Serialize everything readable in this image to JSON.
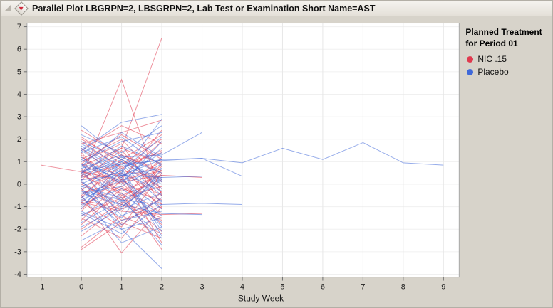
{
  "header": {
    "title": "Parallel Plot LBGRPN=2, LBSGRPN=2, Lab Test or Examination Short Name=AST"
  },
  "legend": {
    "title_line1": "Planned Treatment",
    "title_line2": "for Period 01"
  },
  "chart_data": {
    "type": "line",
    "subtype": "parallel-coordinates",
    "title": "Parallel Plot LBGRPN=2, LBSGRPN=2, Lab Test or Examination Short Name=AST",
    "xlabel": "Study Week",
    "ylabel": "",
    "xlim": [
      -1.35,
      9.39
    ],
    "ylim": [
      -4.13,
      7.16
    ],
    "xticks": [
      -1,
      0,
      1,
      2,
      3,
      4,
      5,
      6,
      7,
      8,
      9
    ],
    "yticks": [
      -4,
      -3,
      -2,
      -1,
      0,
      1,
      2,
      3,
      4,
      5,
      6,
      7
    ],
    "grid": true,
    "legend_position": "right",
    "default_x": [
      0,
      1,
      2
    ],
    "series": [
      {
        "name": "NIC .15",
        "color": "#e0394e",
        "lines": [
          {
            "x": [
              -1,
              0,
              1,
              2
            ],
            "y": [
              0.85,
              0.55,
              0.2,
              0.6
            ]
          },
          {
            "y": [
              0.5,
              1.6,
              6.5
            ]
          },
          {
            "y": [
              0.3,
              4.65,
              -0.5
            ]
          },
          {
            "y": [
              1.8,
              2.3,
              2.85
            ]
          },
          {
            "x": [
              0,
              1,
              2,
              3
            ],
            "y": [
              0.6,
              0.1,
              0.4,
              0.3
            ]
          },
          {
            "x": [
              0,
              1,
              2,
              3
            ],
            "y": [
              -0.8,
              -1.2,
              -1.35,
              -1.3
            ]
          },
          {
            "y": [
              -0.5,
              -3.05,
              -1.0
            ]
          },
          {
            "y": [
              -2.9,
              -1.7,
              -2.4
            ]
          },
          {
            "y": [
              0.6,
              -0.3,
              0.4
            ]
          },
          {
            "y": [
              -0.5,
              0.8,
              -1.1
            ]
          },
          {
            "y": [
              1.2,
              0.3,
              1.9
            ]
          },
          {
            "y": [
              -1.4,
              -0.6,
              -2.1
            ]
          },
          {
            "y": [
              0.2,
              1.5,
              -0.4
            ]
          },
          {
            "y": [
              2.1,
              0.9,
              1.4
            ]
          },
          {
            "y": [
              -0.8,
              -1.9,
              0.5
            ]
          },
          {
            "y": [
              0.9,
              2.2,
              1.1
            ]
          },
          {
            "y": [
              -2.3,
              -0.9,
              -1.6
            ]
          },
          {
            "y": [
              1.6,
              0.2,
              2.4
            ]
          },
          {
            "y": [
              0.1,
              -1.2,
              0.8
            ]
          },
          {
            "y": [
              -0.6,
              1.1,
              -0.2
            ]
          },
          {
            "y": [
              2.4,
              1.3,
              0.6
            ]
          },
          {
            "y": [
              -1.1,
              0.4,
              -2.6
            ]
          },
          {
            "y": [
              0.5,
              -0.7,
              1.2
            ]
          },
          {
            "y": [
              1.0,
              1.8,
              -0.9
            ]
          },
          {
            "y": [
              -1.8,
              -0.2,
              -0.7
            ]
          },
          {
            "y": [
              0.3,
              0.9,
              2.0
            ]
          },
          {
            "y": [
              -0.2,
              -1.6,
              -1.0
            ]
          },
          {
            "y": [
              1.4,
              -0.5,
              0.2
            ]
          },
          {
            "y": [
              -2.8,
              -1.4,
              -2.2
            ]
          },
          {
            "y": [
              0.8,
              1.6,
              0.9
            ]
          },
          {
            "y": [
              -0.4,
              0.1,
              -1.8
            ]
          },
          {
            "y": [
              1.9,
              0.7,
              1.5
            ]
          },
          {
            "y": [
              0.0,
              -0.9,
              0.6
            ]
          },
          {
            "y": [
              -1.5,
              -2.4,
              -0.3
            ]
          },
          {
            "y": [
              1.1,
              2.0,
              0.1
            ]
          },
          {
            "y": [
              -0.9,
              -0.1,
              -1.3
            ]
          },
          {
            "y": [
              0.7,
              -1.8,
              -0.6
            ]
          },
          {
            "y": [
              2.0,
              1.1,
              2.2
            ]
          },
          {
            "y": [
              -1.2,
              0.6,
              0.3
            ]
          },
          {
            "y": [
              0.4,
              -0.4,
              -2.9
            ]
          },
          {
            "y": [
              1.5,
              2.6,
              1.8
            ]
          },
          {
            "y": [
              -0.7,
              -1.1,
              0.9
            ]
          },
          {
            "y": [
              0.2,
              0.5,
              -0.5
            ]
          },
          {
            "y": [
              -2.0,
              -0.8,
              -1.5
            ]
          },
          {
            "y": [
              0.9,
              0.0,
              1.0
            ]
          },
          {
            "y": [
              -0.3,
              1.3,
              0.5
            ]
          },
          {
            "y": [
              1.3,
              -0.6,
              -0.1
            ]
          },
          {
            "y": [
              -1.6,
              0.2,
              -0.9
            ]
          }
        ]
      },
      {
        "name": "Placebo",
        "color": "#3f68d9",
        "lines": [
          {
            "y": [
              1.5,
              2.75,
              3.1
            ]
          },
          {
            "y": [
              -1.2,
              -2.0,
              -3.75
            ]
          },
          {
            "x": [
              0,
              1,
              2,
              3
            ],
            "y": [
              0.5,
              1.2,
              1.3,
              2.3
            ]
          },
          {
            "x": [
              0,
              1,
              2,
              3,
              4,
              5,
              6,
              7,
              8,
              9
            ],
            "y": [
              0.6,
              0.9,
              1.05,
              1.15,
              0.95,
              1.6,
              1.1,
              1.85,
              0.95,
              0.85
            ]
          },
          {
            "x": [
              0,
              1,
              2,
              3,
              4
            ],
            "y": [
              -0.3,
              -0.7,
              -0.9,
              -0.85,
              -0.9
            ]
          },
          {
            "x": [
              0,
              1,
              2,
              3,
              4
            ],
            "y": [
              0.9,
              0.4,
              1.1,
              1.15,
              0.35
            ]
          },
          {
            "x": [
              0,
              1,
              2,
              3
            ],
            "y": [
              -0.4,
              -0.9,
              -1.3,
              -1.35
            ]
          },
          {
            "x": [
              0,
              1,
              2,
              3
            ],
            "y": [
              0.2,
              0.4,
              0.3,
              0.35
            ]
          },
          {
            "y": [
              0.4,
              1.1,
              0.2
            ]
          },
          {
            "y": [
              -0.9,
              -0.2,
              -1.4
            ]
          },
          {
            "y": [
              1.7,
              0.6,
              2.1
            ]
          },
          {
            "y": [
              -0.3,
              -1.5,
              0.7
            ]
          },
          {
            "y": [
              0.8,
              2.3,
              1.2
            ]
          },
          {
            "y": [
              -1.7,
              -0.7,
              -2.4
            ]
          },
          {
            "y": [
              1.1,
              0.1,
              1.6
            ]
          },
          {
            "y": [
              0.0,
              0.9,
              -0.8
            ]
          },
          {
            "y": [
              -2.1,
              -1.1,
              -0.4
            ]
          },
          {
            "y": [
              1.4,
              2.1,
              0.8
            ]
          },
          {
            "y": [
              -0.6,
              0.3,
              -1.9
            ]
          },
          {
            "y": [
              0.9,
              -0.8,
              0.4
            ]
          },
          {
            "y": [
              2.2,
              1.4,
              2.6
            ]
          },
          {
            "y": [
              -1.3,
              -2.2,
              -0.9
            ]
          },
          {
            "y": [
              0.3,
              1.0,
              0.0
            ]
          },
          {
            "y": [
              -0.1,
              -0.6,
              -2.7
            ]
          },
          {
            "y": [
              1.8,
              0.8,
              1.1
            ]
          },
          {
            "y": [
              -0.8,
              0.5,
              -0.3
            ]
          },
          {
            "y": [
              0.6,
              -1.4,
              -0.7
            ]
          },
          {
            "y": [
              -2.5,
              -1.6,
              -1.2
            ]
          },
          {
            "y": [
              1.0,
              1.9,
              2.3
            ]
          },
          {
            "y": [
              -0.4,
              -0.1,
              0.9
            ]
          },
          {
            "y": [
              0.2,
              -2.0,
              -1.5
            ]
          },
          {
            "y": [
              1.5,
              0.4,
              0.7
            ]
          },
          {
            "y": [
              -1.0,
              0.7,
              -2.1
            ]
          },
          {
            "y": [
              0.7,
              1.3,
              -0.2
            ]
          },
          {
            "y": [
              -1.9,
              -1.0,
              0.2
            ]
          },
          {
            "y": [
              1.2,
              0.0,
              1.9
            ]
          },
          {
            "y": [
              -0.2,
              -1.8,
              -0.6
            ]
          },
          {
            "y": [
              2.6,
              1.2,
              0.5
            ]
          },
          {
            "y": [
              -0.7,
              0.2,
              -1.1
            ]
          },
          {
            "y": [
              0.5,
              1.7,
              0.9
            ]
          },
          {
            "y": [
              -1.4,
              -0.4,
              -1.7
            ]
          },
          {
            "y": [
              1.6,
              0.5,
              2.9
            ]
          },
          {
            "y": [
              0.1,
              -1.0,
              0.3
            ]
          },
          {
            "y": [
              -0.5,
              -2.6,
              -1.9
            ]
          },
          {
            "y": [
              0.8,
              0.3,
              1.4
            ]
          },
          {
            "y": [
              -1.1,
              1.0,
              -0.5
            ]
          },
          {
            "y": [
              1.9,
              1.1,
              0.1
            ]
          },
          {
            "y": [
              -0.1,
              0.6,
              -2.3
            ]
          }
        ]
      }
    ]
  }
}
